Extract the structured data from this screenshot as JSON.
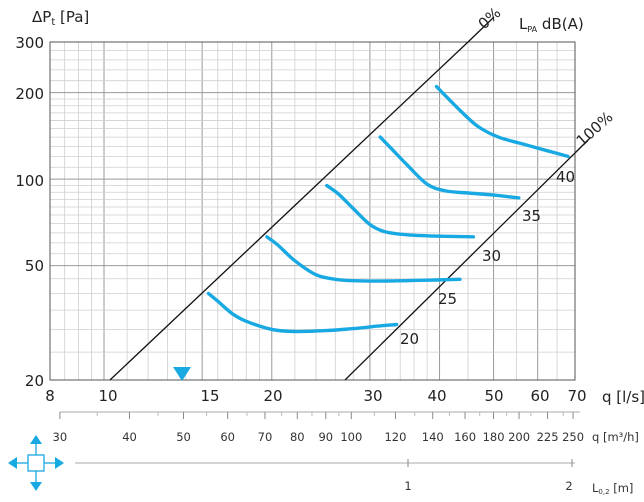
{
  "chart_data": {
    "type": "line",
    "y_axis": {
      "label_main": "ΔP",
      "label_sub": "t",
      "label_unit": " [Pa]",
      "scale": "log",
      "range": [
        20,
        300
      ],
      "ticks": [
        "20",
        "50",
        "100",
        "200",
        "300"
      ]
    },
    "x_axis": {
      "label": "q [l/s]",
      "scale": "log",
      "range": [
        8,
        70
      ],
      "ticks": [
        "8",
        "10",
        "15",
        "20",
        "30",
        "40",
        "50",
        "60",
        "70"
      ]
    },
    "secondary_axis_m3h": {
      "label": "q [m³/h]",
      "range": [
        28.8,
        252
      ],
      "ticks": [
        "30",
        "40",
        "50",
        "60",
        "70",
        "80",
        "90",
        "100",
        "120",
        "140",
        "160",
        "180",
        "200",
        "225",
        "250"
      ]
    },
    "throw_axis": {
      "label_main": "L",
      "label_sub": "0,2",
      "label_unit": " [m]",
      "ticks": [
        "1",
        "2"
      ]
    },
    "opening_lines": {
      "closed_label": "0%",
      "open_label": "100%",
      "sound_label_main": "L",
      "sound_label_sub": "PA",
      "sound_label_unit": " dB(A)"
    },
    "sound_levels": [
      "20",
      "25",
      "30",
      "35",
      "40"
    ],
    "marker_value": 14,
    "series": [
      {
        "label": "20",
        "points": [
          [
            15.4,
            40
          ],
          [
            16,
            37.6
          ],
          [
            17,
            34
          ],
          [
            18,
            32
          ],
          [
            20,
            30
          ],
          [
            22,
            29.5
          ],
          [
            25,
            29.7
          ],
          [
            28,
            30.2
          ],
          [
            31,
            30.8
          ],
          [
            33.5,
            31.2
          ]
        ]
      },
      {
        "label": "25",
        "points": [
          [
            19.6,
            63
          ],
          [
            20.5,
            59
          ],
          [
            22,
            52
          ],
          [
            24,
            46.5
          ],
          [
            26,
            44.8
          ],
          [
            28,
            44.3
          ],
          [
            32,
            44.2
          ],
          [
            38,
            44.5
          ],
          [
            43.5,
            44.8
          ]
        ]
      },
      {
        "label": "30",
        "points": [
          [
            25.1,
            95
          ],
          [
            26.3,
            89
          ],
          [
            28,
            79
          ],
          [
            30,
            69.5
          ],
          [
            32,
            65.5
          ],
          [
            35,
            64
          ],
          [
            40,
            63.3
          ],
          [
            46,
            63
          ]
        ]
      },
      {
        "label": "35",
        "points": [
          [
            31.3,
            140
          ],
          [
            32.5,
            130
          ],
          [
            35,
            112
          ],
          [
            38,
            96
          ],
          [
            41,
            91
          ],
          [
            45,
            89.5
          ],
          [
            50,
            88
          ],
          [
            55.5,
            86
          ]
        ]
      },
      {
        "label": "40",
        "points": [
          [
            39.5,
            210
          ],
          [
            41,
            195
          ],
          [
            44,
            170
          ],
          [
            47,
            152
          ],
          [
            51,
            140
          ],
          [
            56,
            133
          ],
          [
            62,
            126
          ],
          [
            68,
            120
          ]
        ]
      }
    ]
  }
}
